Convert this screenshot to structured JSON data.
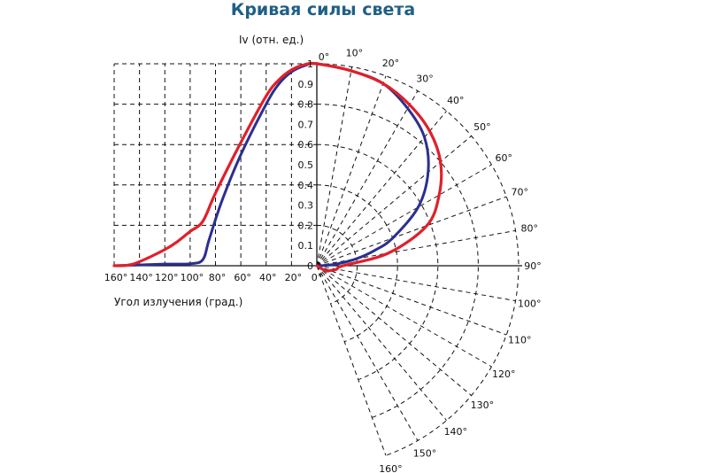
{
  "chart_data": {
    "type": "line",
    "title": "Кривая силы света",
    "ylabel": "Iv (отн. ед.)",
    "xlabel": "Угол излучения (град.)",
    "ylim": [
      0,
      1
    ],
    "y_ticks": [
      "0",
      "0.1",
      "0.2",
      "0.3",
      "0.4",
      "0.5",
      "0.6",
      "0.7",
      "0.8",
      "0.9",
      "1"
    ],
    "x_ticks": [
      "160°",
      "140°",
      "120°",
      "100°",
      "80°",
      "60°",
      "40°",
      "20°",
      "0°"
    ],
    "polar_ticks": [
      "0°",
      "10°",
      "20°",
      "30°",
      "40°",
      "50°",
      "60°",
      "70°",
      "80°",
      "90°",
      "100°",
      "110°",
      "120°",
      "130°",
      "140°",
      "150°",
      "160°"
    ],
    "grid": true,
    "series": [
      {
        "color": "#2b2f8f",
        "cartesian": {
          "x": [
            160,
            140,
            120,
            100,
            90,
            85,
            75,
            60,
            40,
            30,
            20,
            10,
            0
          ],
          "y": [
            0,
            0.004,
            0.008,
            0.01,
            0.03,
            0.13,
            0.32,
            0.55,
            0.8,
            0.9,
            0.96,
            0.99,
            1.0
          ]
        },
        "polar": {
          "angle": [
            0,
            10,
            20,
            30,
            40,
            50,
            60,
            70,
            75,
            80,
            85,
            90
          ],
          "r": [
            1.0,
            0.98,
            0.96,
            0.9,
            0.83,
            0.72,
            0.58,
            0.4,
            0.3,
            0.2,
            0.1,
            0.02
          ]
        }
      },
      {
        "color": "#e0202a",
        "cartesian": {
          "x": [
            160,
            150,
            140,
            120,
            110,
            100,
            90,
            80,
            60,
            40,
            30,
            20,
            10,
            0
          ],
          "y": [
            0,
            0.002,
            0.02,
            0.08,
            0.12,
            0.17,
            0.22,
            0.36,
            0.61,
            0.84,
            0.92,
            0.97,
            0.995,
            1.0
          ]
        },
        "polar": {
          "angle": [
            0,
            10,
            20,
            30,
            40,
            50,
            60,
            70,
            80,
            90,
            100,
            110,
            120
          ],
          "r": [
            1.0,
            0.98,
            0.96,
            0.92,
            0.87,
            0.8,
            0.7,
            0.58,
            0.36,
            0.13,
            0.1,
            0.07,
            0.05
          ]
        }
      }
    ]
  }
}
